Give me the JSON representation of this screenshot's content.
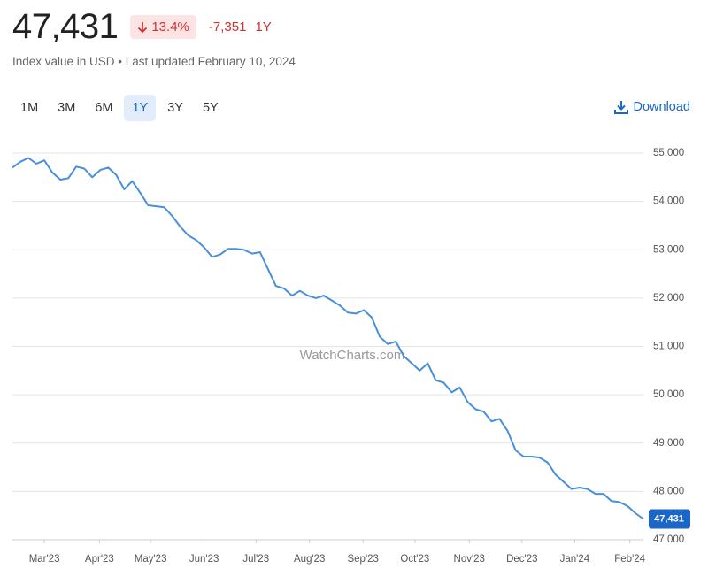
{
  "header": {
    "value": "47,431",
    "change_pct": "13.4%",
    "change_abs": "-7,351",
    "period": "1Y",
    "subtitle": "Index value in USD • Last updated February 10, 2024",
    "ranges": [
      "1M",
      "3M",
      "6M",
      "1Y",
      "3Y",
      "5Y"
    ],
    "active_range_index": 3,
    "download": "Download"
  },
  "chart_data": {
    "type": "line",
    "watermark": "WatchCharts.com",
    "color": "#4a8fdb",
    "grid": true,
    "values": [
      54700,
      54820,
      54900,
      54780,
      54850,
      54600,
      54450,
      54480,
      54720,
      54680,
      54500,
      54650,
      54700,
      54550,
      54250,
      54420,
      54180,
      53920,
      53900,
      53880,
      53700,
      53480,
      53300,
      53200,
      53050,
      52850,
      52900,
      53020,
      53020,
      53000,
      52920,
      52950,
      52600,
      52250,
      52200,
      52050,
      52150,
      52050,
      52000,
      52050,
      51950,
      51850,
      51700,
      51680,
      51750,
      51600,
      51200,
      51050,
      51100,
      50800,
      50650,
      50500,
      50650,
      50300,
      50250,
      50050,
      50150,
      49850,
      49700,
      49650,
      49450,
      49500,
      49250,
      48850,
      48720,
      48720,
      48700,
      48600,
      48350,
      48200,
      48050,
      48080,
      48050,
      47950,
      47950,
      47800,
      47780,
      47700,
      47550,
      47431
    ],
    "ylim": [
      47000,
      55000
    ],
    "yticks": [
      {
        "value": 47000,
        "label": "47,000"
      },
      {
        "value": 48000,
        "label": "48,000"
      },
      {
        "value": 49000,
        "label": "49,000"
      },
      {
        "value": 50000,
        "label": "50,000"
      },
      {
        "value": 51000,
        "label": "51,000"
      },
      {
        "value": 52000,
        "label": "52,000"
      },
      {
        "value": 53000,
        "label": "53,000"
      },
      {
        "value": 54000,
        "label": "54,000"
      },
      {
        "value": 55000,
        "label": "55,000"
      }
    ],
    "xticks": [
      {
        "value": 4,
        "label": "Mar'23"
      },
      {
        "value": 10.9,
        "label": "Apr'23"
      },
      {
        "value": 17.3,
        "label": "May'23"
      },
      {
        "value": 24,
        "label": "Jun'23"
      },
      {
        "value": 30.5,
        "label": "Jul'23"
      },
      {
        "value": 37.2,
        "label": "Aug'23"
      },
      {
        "value": 43.9,
        "label": "Sep'23"
      },
      {
        "value": 50.4,
        "label": "Oct'23"
      },
      {
        "value": 57.2,
        "label": "Nov'23"
      },
      {
        "value": 63.8,
        "label": "Dec'23"
      },
      {
        "value": 70.4,
        "label": "Jan'24"
      },
      {
        "value": 77.3,
        "label": "Feb'24"
      }
    ]
  }
}
